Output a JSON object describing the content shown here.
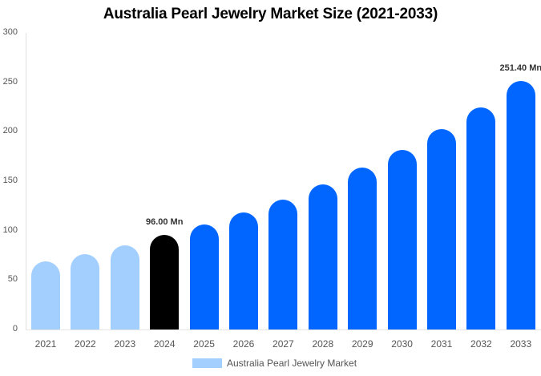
{
  "chart_data": {
    "type": "bar",
    "title": "Australia Pearl Jewelry Market Size (2021-2033)",
    "xlabel": "",
    "ylabel": "",
    "ylim": [
      0,
      300
    ],
    "yticks": [
      0,
      50,
      100,
      150,
      200,
      250,
      300
    ],
    "grid": false,
    "legend_position": "bottom",
    "categories": [
      "2021",
      "2022",
      "2023",
      "2024",
      "2025",
      "2026",
      "2027",
      "2028",
      "2029",
      "2030",
      "2031",
      "2032",
      "2033"
    ],
    "series": [
      {
        "name": "Australia Pearl Jewelry Market",
        "values": [
          69,
          76,
          85,
          96.0,
          106,
          118,
          131,
          147,
          164,
          182,
          203,
          225,
          251.4
        ]
      }
    ],
    "bar_colors": [
      "#a3cfff",
      "#a3cfff",
      "#a3cfff",
      "#000000",
      "#0066ff",
      "#0066ff",
      "#0066ff",
      "#0066ff",
      "#0066ff",
      "#0066ff",
      "#0066ff",
      "#0066ff",
      "#0066ff"
    ],
    "annotations": [
      {
        "category": "2024",
        "text": "96.00 Mn"
      },
      {
        "category": "2033",
        "text": "251.40 Mn"
      }
    ]
  },
  "legend": {
    "label": "Australia Pearl Jewelry Market",
    "color": "#a3cfff"
  }
}
